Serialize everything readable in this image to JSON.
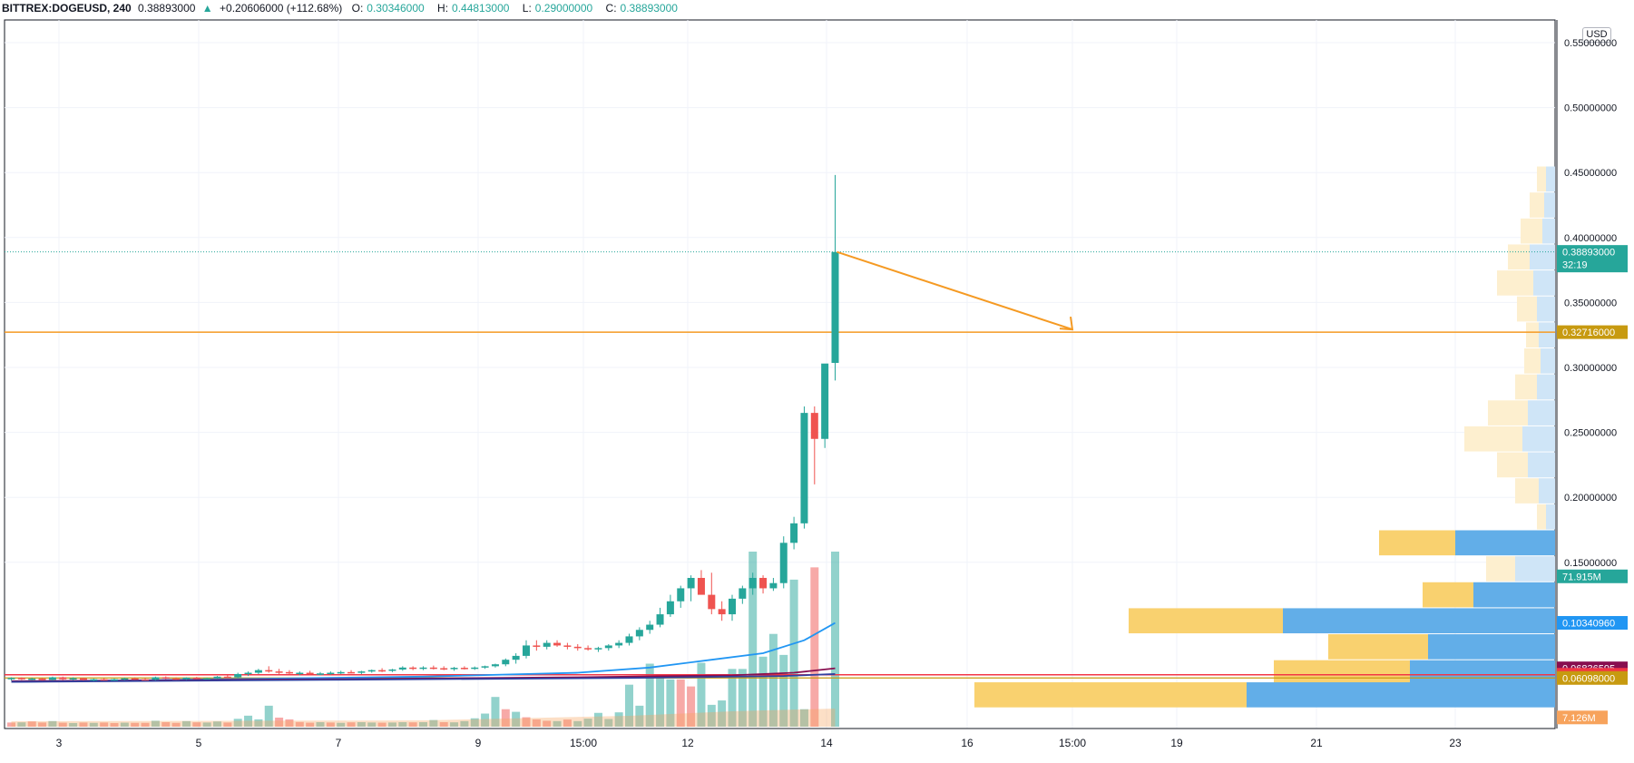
{
  "header": {
    "symbol": "BITTREX:DOGEUSD, 240",
    "last": "0.38893000",
    "change_arrow": "▲",
    "change": "+0.20606000 (+112.68%)",
    "open_label": "O:",
    "open": "0.30346000",
    "high_label": "H:",
    "high": "0.44813000",
    "low_label": "L:",
    "low": "0.29000000",
    "close_label": "C:",
    "close": "0.38893000"
  },
  "price_axis": {
    "currency_label": "USD",
    "ticks": [
      "0.55000000",
      "0.50000000",
      "0.45000000",
      "0.40000000",
      "0.35000000",
      "0.30000000",
      "0.25000000",
      "0.20000000",
      "0.15000000"
    ]
  },
  "time_axis": {
    "ticks": [
      "3",
      "5",
      "7",
      "9",
      "15:00",
      "12",
      "14",
      "16",
      "15:00",
      "19",
      "21",
      "23"
    ]
  },
  "price_labels": [
    {
      "id": "last-price",
      "text": "0.38893000",
      "sub": "32:19",
      "color": "#26a69a"
    },
    {
      "id": "horizontal-line",
      "text": "0.32716000",
      "color": "#c79a10"
    },
    {
      "id": "volume-profile-vol",
      "text": "71.915M",
      "color": "#26a69a"
    },
    {
      "id": "ma-blue",
      "text": "0.10340960",
      "color": "#2196f3"
    },
    {
      "id": "ma-maroon",
      "text": "0.06836595",
      "color": "#880e4f"
    },
    {
      "id": "red-line",
      "text": "0.06344479",
      "color": "#f23645"
    },
    {
      "id": "gold-line",
      "text": "0.06098000",
      "color": "#c79a10"
    },
    {
      "id": "volume",
      "text": "7.126M",
      "color": "#f7a35c"
    }
  ],
  "colors": {
    "up": "#26a69a",
    "down": "#ef5350",
    "grid": "#f0f3fa",
    "axis_text": "#131722",
    "hline": "#f59a23",
    "ma_blue": "#2196f3",
    "ma_maroon": "#880e4f",
    "ma_navy": "#303f9f",
    "vp_up": "#62aee8",
    "vp_down": "#f9d16f"
  },
  "chart_data": {
    "type": "candlestick",
    "interval": "240",
    "ylim": [
      0.0,
      0.55
    ],
    "horizontal_lines": [
      0.32716,
      0.06344479,
      0.06098
    ],
    "candles": [
      {
        "o": 0.06,
        "h": 0.0615,
        "l": 0.059,
        "c": 0.061
      },
      {
        "o": 0.061,
        "h": 0.0615,
        "l": 0.0595,
        "c": 0.06
      },
      {
        "o": 0.06,
        "h": 0.0612,
        "l": 0.0592,
        "c": 0.0605
      },
      {
        "o": 0.0605,
        "h": 0.061,
        "l": 0.059,
        "c": 0.0595
      },
      {
        "o": 0.0595,
        "h": 0.062,
        "l": 0.059,
        "c": 0.0615
      },
      {
        "o": 0.0615,
        "h": 0.062,
        "l": 0.0595,
        "c": 0.06
      },
      {
        "o": 0.06,
        "h": 0.0615,
        "l": 0.0592,
        "c": 0.0608
      },
      {
        "o": 0.0608,
        "h": 0.0612,
        "l": 0.059,
        "c": 0.0596
      },
      {
        "o": 0.0596,
        "h": 0.0605,
        "l": 0.0585,
        "c": 0.06
      },
      {
        "o": 0.06,
        "h": 0.061,
        "l": 0.059,
        "c": 0.0595
      },
      {
        "o": 0.0595,
        "h": 0.0606,
        "l": 0.0588,
        "c": 0.06
      },
      {
        "o": 0.06,
        "h": 0.0612,
        "l": 0.0592,
        "c": 0.0607
      },
      {
        "o": 0.0607,
        "h": 0.0614,
        "l": 0.0596,
        "c": 0.06
      },
      {
        "o": 0.06,
        "h": 0.061,
        "l": 0.059,
        "c": 0.0596
      },
      {
        "o": 0.0596,
        "h": 0.062,
        "l": 0.059,
        "c": 0.0615
      },
      {
        "o": 0.0615,
        "h": 0.0622,
        "l": 0.06,
        "c": 0.0606
      },
      {
        "o": 0.0606,
        "h": 0.0614,
        "l": 0.0595,
        "c": 0.06
      },
      {
        "o": 0.06,
        "h": 0.0615,
        "l": 0.0595,
        "c": 0.0612
      },
      {
        "o": 0.0612,
        "h": 0.0618,
        "l": 0.06,
        "c": 0.0604
      },
      {
        "o": 0.0604,
        "h": 0.0612,
        "l": 0.0598,
        "c": 0.0608
      },
      {
        "o": 0.0608,
        "h": 0.0625,
        "l": 0.06,
        "c": 0.062
      },
      {
        "o": 0.062,
        "h": 0.063,
        "l": 0.061,
        "c": 0.0615
      },
      {
        "o": 0.0615,
        "h": 0.065,
        "l": 0.061,
        "c": 0.064
      },
      {
        "o": 0.064,
        "h": 0.066,
        "l": 0.0625,
        "c": 0.065
      },
      {
        "o": 0.065,
        "h": 0.068,
        "l": 0.064,
        "c": 0.067
      },
      {
        "o": 0.067,
        "h": 0.07,
        "l": 0.065,
        "c": 0.066
      },
      {
        "o": 0.066,
        "h": 0.068,
        "l": 0.064,
        "c": 0.0655
      },
      {
        "o": 0.0655,
        "h": 0.067,
        "l": 0.064,
        "c": 0.0645
      },
      {
        "o": 0.0645,
        "h": 0.066,
        "l": 0.063,
        "c": 0.065
      },
      {
        "o": 0.065,
        "h": 0.0665,
        "l": 0.0635,
        "c": 0.064
      },
      {
        "o": 0.064,
        "h": 0.0655,
        "l": 0.063,
        "c": 0.0645
      },
      {
        "o": 0.0645,
        "h": 0.066,
        "l": 0.0635,
        "c": 0.065
      },
      {
        "o": 0.065,
        "h": 0.0665,
        "l": 0.064,
        "c": 0.0655
      },
      {
        "o": 0.0655,
        "h": 0.067,
        "l": 0.0645,
        "c": 0.065
      },
      {
        "o": 0.065,
        "h": 0.0665,
        "l": 0.064,
        "c": 0.066
      },
      {
        "o": 0.066,
        "h": 0.0675,
        "l": 0.065,
        "c": 0.067
      },
      {
        "o": 0.067,
        "h": 0.0685,
        "l": 0.0655,
        "c": 0.0665
      },
      {
        "o": 0.0665,
        "h": 0.068,
        "l": 0.0655,
        "c": 0.0675
      },
      {
        "o": 0.0675,
        "h": 0.07,
        "l": 0.0665,
        "c": 0.069
      },
      {
        "o": 0.069,
        "h": 0.07,
        "l": 0.067,
        "c": 0.068
      },
      {
        "o": 0.068,
        "h": 0.07,
        "l": 0.067,
        "c": 0.069
      },
      {
        "o": 0.069,
        "h": 0.0705,
        "l": 0.0675,
        "c": 0.0685
      },
      {
        "o": 0.0685,
        "h": 0.07,
        "l": 0.067,
        "c": 0.068
      },
      {
        "o": 0.068,
        "h": 0.0695,
        "l": 0.0665,
        "c": 0.0688
      },
      {
        "o": 0.0688,
        "h": 0.07,
        "l": 0.0675,
        "c": 0.0685
      },
      {
        "o": 0.0685,
        "h": 0.0698,
        "l": 0.0672,
        "c": 0.069
      },
      {
        "o": 0.069,
        "h": 0.0705,
        "l": 0.068,
        "c": 0.07
      },
      {
        "o": 0.07,
        "h": 0.072,
        "l": 0.069,
        "c": 0.0715
      },
      {
        "o": 0.0715,
        "h": 0.076,
        "l": 0.07,
        "c": 0.075
      },
      {
        "o": 0.075,
        "h": 0.08,
        "l": 0.072,
        "c": 0.078
      },
      {
        "o": 0.078,
        "h": 0.09,
        "l": 0.076,
        "c": 0.086
      },
      {
        "o": 0.086,
        "h": 0.09,
        "l": 0.082,
        "c": 0.085
      },
      {
        "o": 0.085,
        "h": 0.09,
        "l": 0.083,
        "c": 0.088
      },
      {
        "o": 0.088,
        "h": 0.09,
        "l": 0.085,
        "c": 0.086
      },
      {
        "o": 0.086,
        "h": 0.088,
        "l": 0.083,
        "c": 0.085
      },
      {
        "o": 0.085,
        "h": 0.087,
        "l": 0.082,
        "c": 0.084
      },
      {
        "o": 0.084,
        "h": 0.086,
        "l": 0.082,
        "c": 0.083
      },
      {
        "o": 0.083,
        "h": 0.085,
        "l": 0.081,
        "c": 0.084
      },
      {
        "o": 0.084,
        "h": 0.087,
        "l": 0.082,
        "c": 0.086
      },
      {
        "o": 0.086,
        "h": 0.09,
        "l": 0.084,
        "c": 0.088
      },
      {
        "o": 0.088,
        "h": 0.095,
        "l": 0.086,
        "c": 0.093
      },
      {
        "o": 0.093,
        "h": 0.1,
        "l": 0.09,
        "c": 0.098
      },
      {
        "o": 0.098,
        "h": 0.105,
        "l": 0.095,
        "c": 0.102
      },
      {
        "o": 0.102,
        "h": 0.115,
        "l": 0.1,
        "c": 0.11
      },
      {
        "o": 0.11,
        "h": 0.125,
        "l": 0.108,
        "c": 0.12
      },
      {
        "o": 0.12,
        "h": 0.132,
        "l": 0.115,
        "c": 0.13
      },
      {
        "o": 0.13,
        "h": 0.14,
        "l": 0.12,
        "c": 0.138
      },
      {
        "o": 0.138,
        "h": 0.144,
        "l": 0.13,
        "c": 0.125
      },
      {
        "o": 0.125,
        "h": 0.142,
        "l": 0.11,
        "c": 0.114
      },
      {
        "o": 0.114,
        "h": 0.12,
        "l": 0.105,
        "c": 0.11
      },
      {
        "o": 0.11,
        "h": 0.125,
        "l": 0.105,
        "c": 0.122
      },
      {
        "o": 0.122,
        "h": 0.132,
        "l": 0.118,
        "c": 0.13
      },
      {
        "o": 0.13,
        "h": 0.142,
        "l": 0.125,
        "c": 0.138
      },
      {
        "o": 0.138,
        "h": 0.14,
        "l": 0.126,
        "c": 0.13
      },
      {
        "o": 0.13,
        "h": 0.138,
        "l": 0.128,
        "c": 0.134
      },
      {
        "o": 0.134,
        "h": 0.17,
        "l": 0.13,
        "c": 0.165
      },
      {
        "o": 0.165,
        "h": 0.185,
        "l": 0.16,
        "c": 0.18
      },
      {
        "o": 0.18,
        "h": 0.27,
        "l": 0.176,
        "c": 0.265
      },
      {
        "o": 0.265,
        "h": 0.27,
        "l": 0.21,
        "c": 0.245
      },
      {
        "o": 0.245,
        "h": 0.3,
        "l": 0.238,
        "c": 0.303
      },
      {
        "o": 0.3035,
        "h": 0.4481,
        "l": 0.29,
        "c": 0.3889
      }
    ],
    "volumes": [
      {
        "v": 2.4,
        "up": false
      },
      {
        "v": 2.5,
        "up": true
      },
      {
        "v": 3.0,
        "up": false
      },
      {
        "v": 2.4,
        "up": false
      },
      {
        "v": 3.2,
        "up": true
      },
      {
        "v": 2.3,
        "up": false
      },
      {
        "v": 2.1,
        "up": true
      },
      {
        "v": 2.4,
        "up": false
      },
      {
        "v": 2.2,
        "up": true
      },
      {
        "v": 2.4,
        "up": false
      },
      {
        "v": 2.1,
        "up": false
      },
      {
        "v": 2.3,
        "up": true
      },
      {
        "v": 2.2,
        "up": false
      },
      {
        "v": 2.2,
        "up": false
      },
      {
        "v": 3.4,
        "up": true
      },
      {
        "v": 2.6,
        "up": false
      },
      {
        "v": 2.2,
        "up": false
      },
      {
        "v": 3.2,
        "up": true
      },
      {
        "v": 2.5,
        "up": false
      },
      {
        "v": 2.4,
        "up": true
      },
      {
        "v": 3.0,
        "up": true
      },
      {
        "v": 2.4,
        "up": false
      },
      {
        "v": 4.5,
        "up": true
      },
      {
        "v": 6.3,
        "up": true
      },
      {
        "v": 4.2,
        "up": true
      },
      {
        "v": 12.0,
        "up": true
      },
      {
        "v": 5.2,
        "up": false
      },
      {
        "v": 4.2,
        "up": false
      },
      {
        "v": 2.7,
        "up": false
      },
      {
        "v": 2.3,
        "up": false
      },
      {
        "v": 2.6,
        "up": true
      },
      {
        "v": 2.4,
        "up": false
      },
      {
        "v": 2.2,
        "up": true
      },
      {
        "v": 2.5,
        "up": false
      },
      {
        "v": 2.6,
        "up": true
      },
      {
        "v": 2.4,
        "up": true
      },
      {
        "v": 2.3,
        "up": false
      },
      {
        "v": 2.4,
        "up": true
      },
      {
        "v": 2.6,
        "up": true
      },
      {
        "v": 2.5,
        "up": false
      },
      {
        "v": 2.6,
        "up": true
      },
      {
        "v": 3.8,
        "up": true
      },
      {
        "v": 2.6,
        "up": false
      },
      {
        "v": 2.5,
        "up": true
      },
      {
        "v": 3.2,
        "up": true
      },
      {
        "v": 4.8,
        "up": true
      },
      {
        "v": 7.5,
        "up": true
      },
      {
        "v": 17.0,
        "up": true
      },
      {
        "v": 10.0,
        "up": false
      },
      {
        "v": 8.5,
        "up": true
      },
      {
        "v": 5.4,
        "up": false
      },
      {
        "v": 4.2,
        "up": false
      },
      {
        "v": 3.4,
        "up": false
      },
      {
        "v": 3.2,
        "up": true
      },
      {
        "v": 4.1,
        "up": false
      },
      {
        "v": 3.2,
        "up": true
      },
      {
        "v": 4.6,
        "up": true
      },
      {
        "v": 7.9,
        "up": true
      },
      {
        "v": 4.4,
        "up": true
      },
      {
        "v": 8.2,
        "up": true
      },
      {
        "v": 24.0,
        "up": true
      },
      {
        "v": 12.0,
        "up": true
      },
      {
        "v": 36.0,
        "up": true
      },
      {
        "v": 28.0,
        "up": true
      },
      {
        "v": 27.0,
        "up": true
      },
      {
        "v": 27.0,
        "up": false
      },
      {
        "v": 23.0,
        "up": false
      },
      {
        "v": 36.5,
        "up": true
      },
      {
        "v": 12.5,
        "up": true
      },
      {
        "v": 15.0,
        "up": true
      },
      {
        "v": 33.0,
        "up": true
      },
      {
        "v": 33.0,
        "up": true
      },
      {
        "v": 100.0,
        "up": true
      },
      {
        "v": 40.0,
        "up": true
      },
      {
        "v": 53.0,
        "up": true
      },
      {
        "v": 41.0,
        "up": true
      },
      {
        "v": 84.0,
        "up": true
      },
      {
        "v": 10.0,
        "up": true
      },
      {
        "v": 91.0,
        "up": false
      },
      {
        "v": 0.0,
        "up": true
      },
      {
        "v": 100.0,
        "up": true
      }
    ],
    "moving_averages": [
      {
        "name": "MA blue",
        "color": "#2196f3",
        "points": [
          [
            0,
            0.058
          ],
          [
            20,
            0.06
          ],
          [
            40,
            0.062
          ],
          [
            55,
            0.065
          ],
          [
            62,
            0.069
          ],
          [
            68,
            0.075
          ],
          [
            73,
            0.08
          ],
          [
            77,
            0.09
          ],
          [
            80,
            0.1034
          ]
        ]
      },
      {
        "name": "MA maroon",
        "color": "#880e4f",
        "points": [
          [
            0,
            0.0585
          ],
          [
            30,
            0.06
          ],
          [
            55,
            0.0615
          ],
          [
            70,
            0.063
          ],
          [
            76,
            0.065
          ],
          [
            80,
            0.0684
          ]
        ]
      },
      {
        "name": "MA navy",
        "color": "#303f9f",
        "points": [
          [
            0,
            0.058
          ],
          [
            30,
            0.0595
          ],
          [
            60,
            0.061
          ],
          [
            75,
            0.0625
          ],
          [
            80,
            0.064
          ]
        ]
      }
    ],
    "volume_profile": [
      {
        "price": 0.445,
        "up": 0.5,
        "down": 0.5
      },
      {
        "price": 0.425,
        "up": 0.6,
        "down": 0.8
      },
      {
        "price": 0.405,
        "up": 0.7,
        "down": 1.2
      },
      {
        "price": 0.385,
        "up": 1.4,
        "down": 1.2
      },
      {
        "price": 0.365,
        "up": 1.2,
        "down": 2.0
      },
      {
        "price": 0.345,
        "up": 1.0,
        "down": 1.1
      },
      {
        "price": 0.325,
        "up": 0.9,
        "down": 0.7
      },
      {
        "price": 0.305,
        "up": 0.8,
        "down": 0.9
      },
      {
        "price": 0.285,
        "up": 1.0,
        "down": 1.2
      },
      {
        "price": 0.265,
        "up": 1.5,
        "down": 2.2
      },
      {
        "price": 0.245,
        "up": 1.8,
        "down": 3.2
      },
      {
        "price": 0.225,
        "up": 1.5,
        "down": 1.7
      },
      {
        "price": 0.205,
        "up": 0.9,
        "down": 1.3
      },
      {
        "price": 0.185,
        "up": 0.5,
        "down": 0.5
      },
      {
        "price": 0.165,
        "up": 5.5,
        "down": 4.2
      },
      {
        "price": 0.145,
        "up": 2.2,
        "down": 1.6
      },
      {
        "price": 0.125,
        "up": 4.5,
        "down": 2.8
      },
      {
        "price": 0.105,
        "up": 15.0,
        "down": 8.5
      },
      {
        "price": 0.085,
        "up": 7.0,
        "down": 5.5
      },
      {
        "price": 0.065,
        "up": 8.0,
        "down": 7.5
      },
      {
        "price": 0.048,
        "up": 17.0,
        "down": 15.0
      }
    ]
  }
}
